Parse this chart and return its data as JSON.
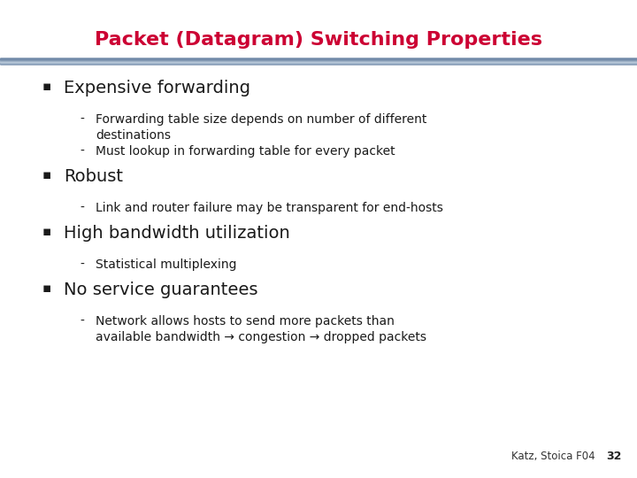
{
  "title": "Packet (Datagram) Switching Properties",
  "title_color": "#CC0033",
  "title_fontsize": 16,
  "background_color": "#FFFFFF",
  "text_color": "#1A1A1A",
  "footer_text": "Katz, Stoica F04",
  "footer_number": "32",
  "bullet_main_size": 14,
  "bullet_sub_size": 10,
  "bullets": [
    {
      "main": "Expensive forwarding",
      "subs": [
        "Forwarding table size depends on number of different\ndestinations",
        "Must lookup in forwarding table for every packet"
      ]
    },
    {
      "main": "Robust",
      "subs": [
        "Link and router failure may be transparent for end-hosts"
      ]
    },
    {
      "main": "High bandwidth utilization",
      "subs": [
        "Statistical multiplexing"
      ]
    },
    {
      "main": "No service guarantees",
      "subs": [
        "Network allows hosts to send more packets than\navailable bandwidth → congestion → dropped packets"
      ]
    }
  ]
}
